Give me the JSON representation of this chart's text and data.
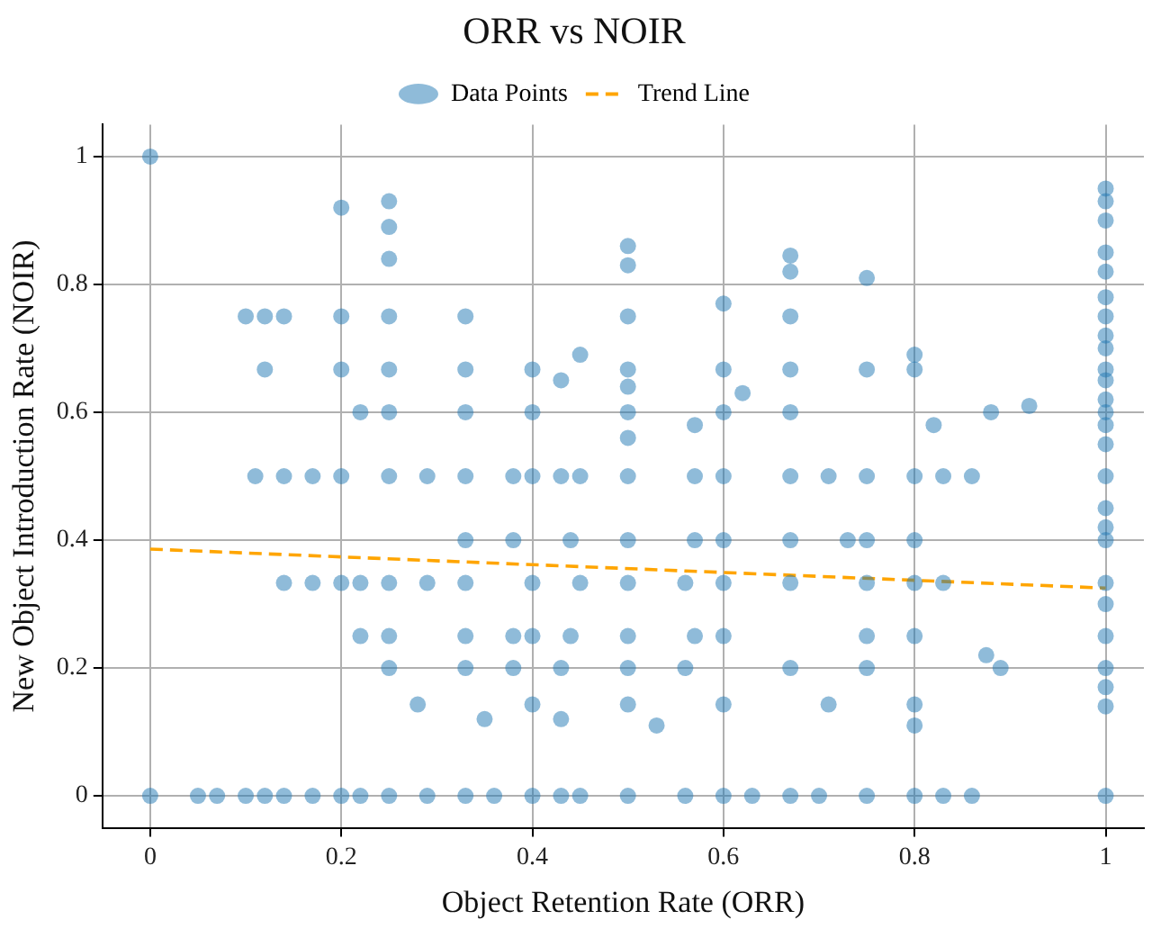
{
  "chart_data": {
    "type": "scatter",
    "title": "ORR vs NOIR",
    "xlabel": "Object Retention Rate (ORR)",
    "ylabel": "New Object Introduction Rate (NOIR)",
    "xlim": [
      -0.05,
      1.04
    ],
    "ylim": [
      -0.05,
      1.05
    ],
    "xticks": [
      0,
      0.2,
      0.4,
      0.6,
      0.8,
      1
    ],
    "yticks": [
      0,
      0.2,
      0.4,
      0.6,
      0.8,
      1
    ],
    "grid": true,
    "legend": "top",
    "marker": "circle",
    "series": [
      {
        "name": "Data Points",
        "color": "#1f77b4",
        "x": [
          0,
          0,
          0.05,
          0.07,
          0.1,
          0.12,
          0.14,
          0.17,
          0.2,
          0.22,
          0.25,
          0.29,
          0.33,
          0.36,
          0.4,
          0.43,
          0.45,
          0.5,
          0.56,
          0.6,
          0.63,
          0.67,
          0.7,
          0.75,
          0.8,
          0.83,
          0.86,
          1,
          0.11,
          0.14,
          0.17,
          0.2,
          0.25,
          0.29,
          0.33,
          0.38,
          0.4,
          0.43,
          0.45,
          0.5,
          0.57,
          0.6,
          0.67,
          0.71,
          0.75,
          0.8,
          0.83,
          0.86,
          1,
          0.14,
          0.17,
          0.2,
          0.22,
          0.25,
          0.29,
          0.33,
          0.4,
          0.45,
          0.5,
          0.56,
          0.6,
          0.67,
          0.75,
          0.8,
          0.83,
          1,
          0.12,
          0.2,
          0.25,
          0.33,
          0.4,
          0.5,
          0.6,
          0.67,
          0.75,
          0.8,
          1,
          0.1,
          0.12,
          0.14,
          0.2,
          0.25,
          0.33,
          0.5,
          0.67,
          1,
          0.22,
          0.25,
          0.33,
          0.4,
          0.5,
          0.6,
          0.67,
          1,
          0.22,
          0.25,
          0.33,
          0.38,
          0.4,
          0.44,
          0.5,
          0.57,
          0.6,
          0.75,
          0.8,
          1,
          0.33,
          0.38,
          0.44,
          0.5,
          0.57,
          0.6,
          0.67,
          0.73,
          0.75,
          0.8,
          1,
          0.25,
          0.33,
          0.38,
          0.43,
          0.5,
          0.56,
          0.67,
          0.75,
          1,
          0.28,
          0.4,
          0.5,
          0.6,
          0.71,
          0.8,
          0.2,
          0.25,
          0.25,
          0.25,
          0.5,
          0.5,
          0.67,
          0.67,
          0.75,
          0.8,
          0.6,
          0.82,
          0.89,
          0.875,
          0.43,
          0.35,
          0.53,
          0.8,
          0.92,
          0.5,
          0.5,
          0.57,
          0.62,
          0.45,
          0.43,
          0.88,
          1,
          1,
          1,
          1,
          1,
          1,
          1,
          1,
          1,
          1,
          1,
          1,
          1,
          1,
          1,
          1,
          1
        ],
        "values": [
          1,
          0,
          0,
          0,
          0,
          0,
          0,
          0,
          0,
          0,
          0,
          0,
          0,
          0,
          0,
          0,
          0,
          0,
          0,
          0,
          0,
          0,
          0,
          0,
          0,
          0,
          0,
          0,
          0.5,
          0.5,
          0.5,
          0.5,
          0.5,
          0.5,
          0.5,
          0.5,
          0.5,
          0.5,
          0.5,
          0.5,
          0.5,
          0.5,
          0.5,
          0.5,
          0.5,
          0.5,
          0.5,
          0.5,
          0.5,
          0.333,
          0.333,
          0.333,
          0.333,
          0.333,
          0.333,
          0.333,
          0.333,
          0.333,
          0.333,
          0.333,
          0.333,
          0.333,
          0.333,
          0.333,
          0.333,
          0.333,
          0.667,
          0.667,
          0.667,
          0.667,
          0.667,
          0.667,
          0.667,
          0.667,
          0.667,
          0.667,
          0.667,
          0.75,
          0.75,
          0.75,
          0.75,
          0.75,
          0.75,
          0.75,
          0.75,
          0.75,
          0.6,
          0.6,
          0.6,
          0.6,
          0.6,
          0.6,
          0.6,
          0.6,
          0.25,
          0.25,
          0.25,
          0.25,
          0.25,
          0.25,
          0.25,
          0.25,
          0.25,
          0.25,
          0.25,
          0.25,
          0.4,
          0.4,
          0.4,
          0.4,
          0.4,
          0.4,
          0.4,
          0.4,
          0.4,
          0.4,
          0.4,
          0.2,
          0.2,
          0.2,
          0.2,
          0.2,
          0.2,
          0.2,
          0.2,
          0.2,
          0.143,
          0.143,
          0.143,
          0.143,
          0.143,
          0.143,
          0.92,
          0.93,
          0.89,
          0.84,
          0.86,
          0.83,
          0.845,
          0.82,
          0.81,
          0.69,
          0.77,
          0.58,
          0.2,
          0.22,
          0.12,
          0.12,
          0.11,
          0.11,
          0.61,
          0.64,
          0.56,
          0.58,
          0.63,
          0.69,
          0.65,
          0.6,
          0.95,
          0.93,
          0.9,
          0.85,
          0.82,
          0.78,
          0.72,
          0.7,
          0.65,
          0.62,
          0.58,
          0.55,
          0.45,
          0.42,
          0.3,
          0.17,
          0.14
        ]
      },
      {
        "name": "Trend Line",
        "type": "line",
        "color": "#ffa500",
        "marker": "none",
        "line_style": "dashed",
        "x": [
          0,
          1
        ],
        "values": [
          0.386,
          0.325
        ]
      }
    ]
  }
}
